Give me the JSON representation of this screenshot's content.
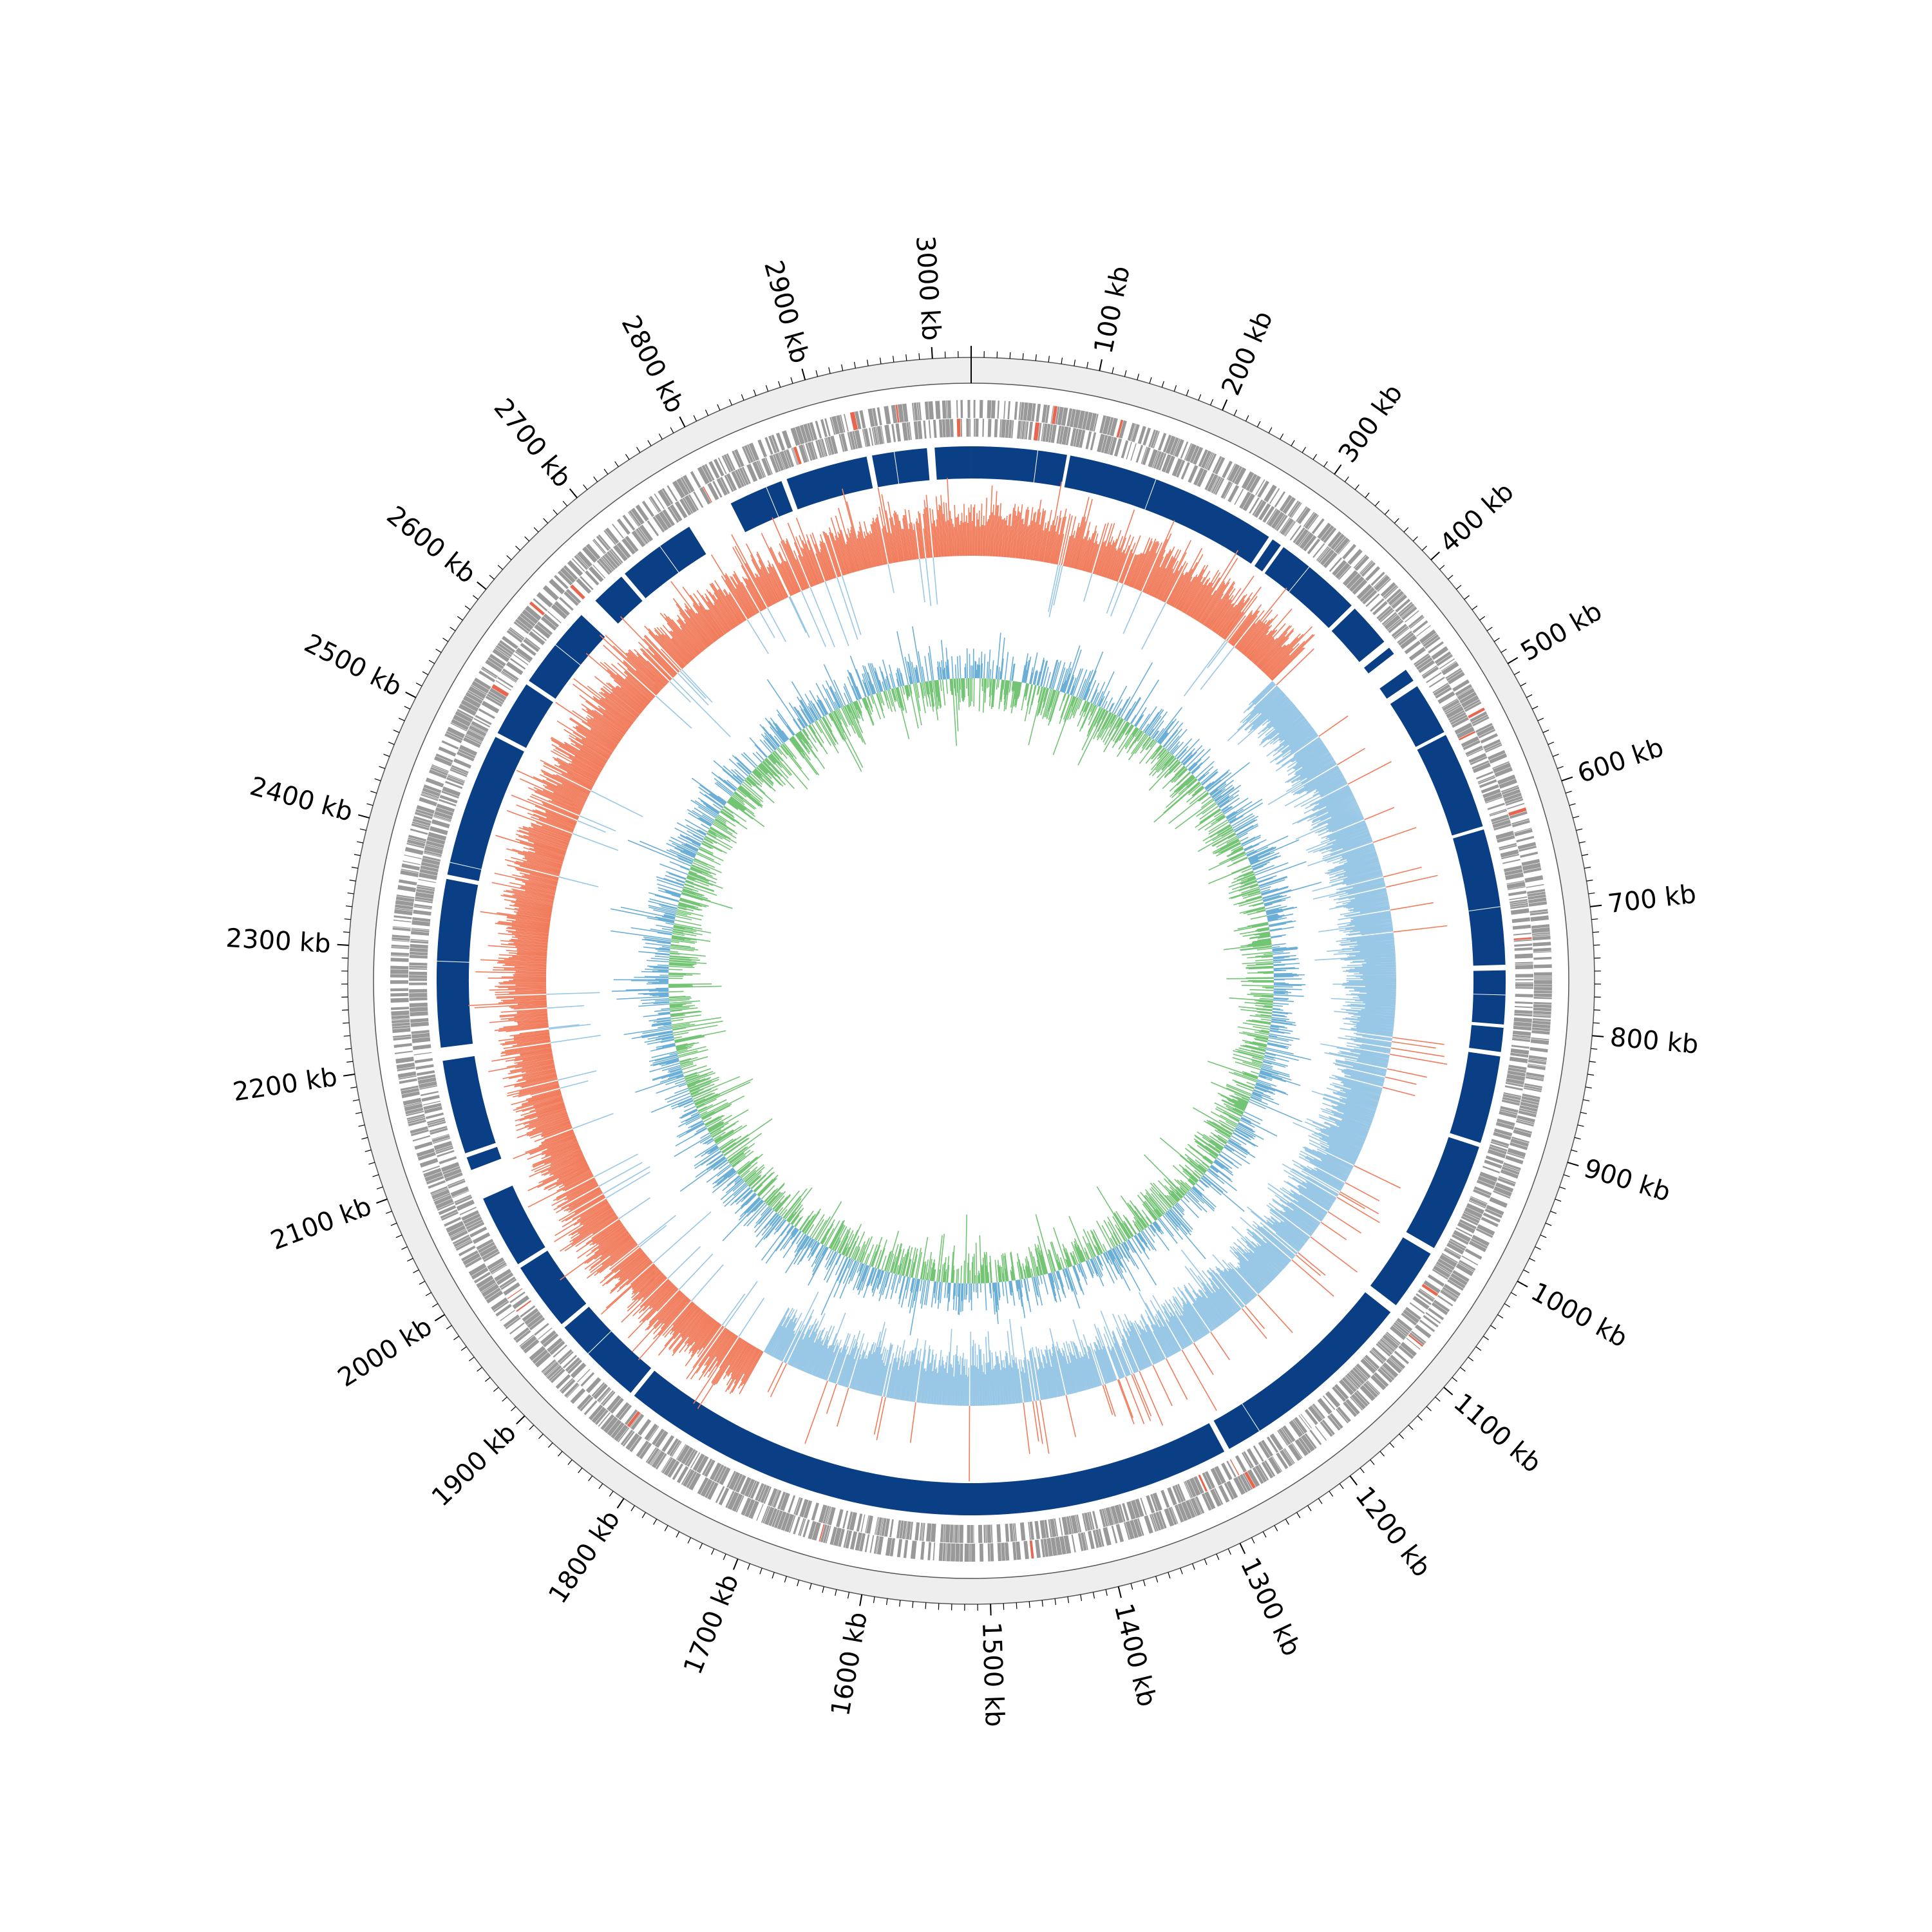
{
  "chart_data": {
    "type": "circular-genome",
    "genome_length_kb": 3030,
    "tick_labels": {
      "major_interval_kb": 100,
      "minor_interval_kb": 10,
      "unit": "kb",
      "labels": [
        "100 kb",
        "200 kb",
        "300 kb",
        "400 kb",
        "500 kb",
        "600 kb",
        "700 kb",
        "800 kb",
        "900 kb",
        "1000 kb",
        "1100 kb",
        "1200 kb",
        "1300 kb",
        "1400 kb",
        "1500 kb",
        "1600 kb",
        "1700 kb",
        "1800 kb",
        "1900 kb",
        "2000 kb",
        "2100 kb",
        "2200 kb",
        "2300 kb",
        "2400 kb",
        "2500 kb",
        "2600 kb",
        "2700 kb",
        "2800 kb",
        "2900 kb",
        "3000 kb"
      ]
    },
    "tracks": [
      {
        "name": "",
        "kind": "gene-features",
        "description": "CDS on both strands",
        "colors": {
          "cds": "#999999",
          "rna": "#e8664f"
        }
      },
      {
        "name": "",
        "kind": "blocks",
        "color": "#0a3f86",
        "gaps_kb": [
          [
            87,
            90
          ],
          [
            285,
            289
          ],
          [
            298,
            301
          ],
          [
            382,
            386
          ],
          [
            426,
            433
          ],
          [
            440,
            458
          ],
          [
            470,
            476
          ],
          [
            524,
            527
          ],
          [
            616,
            619
          ],
          [
            743,
            748
          ],
          [
            797,
            800
          ],
          [
            822,
            826
          ],
          [
            906,
            910
          ],
          [
            1010,
            1016
          ],
          [
            1072,
            1080
          ],
          [
            1272,
            1277
          ],
          [
            1844,
            1848
          ],
          [
            1932,
            1936
          ],
          [
            1999,
            2003
          ],
          [
            2070,
            2098
          ],
          [
            2110,
            2114
          ],
          [
            2200,
            2212
          ],
          [
            2365,
            2369
          ],
          [
            2501,
            2505
          ],
          [
            2556,
            2560
          ],
          [
            2636,
            2654
          ],
          [
            2686,
            2690
          ],
          [
            2762,
            2805
          ],
          [
            2855,
            2860
          ],
          [
            2935,
            2940
          ],
          [
            2990,
            2997
          ]
        ]
      },
      {
        "name": "",
        "kind": "gc-skew",
        "positive_color": "#f17c5c",
        "negative_color": "#99c7e6",
        "sign_change_kb": [
          380,
          1760
        ]
      },
      {
        "name": "",
        "kind": "gc-content",
        "above_color": "#74c476",
        "below_color": "#6baed6"
      }
    ],
    "colors": {
      "outer_ring_fill": "#eeeeee",
      "outer_ring_stroke": "#555555",
      "axis": "#000000"
    }
  }
}
